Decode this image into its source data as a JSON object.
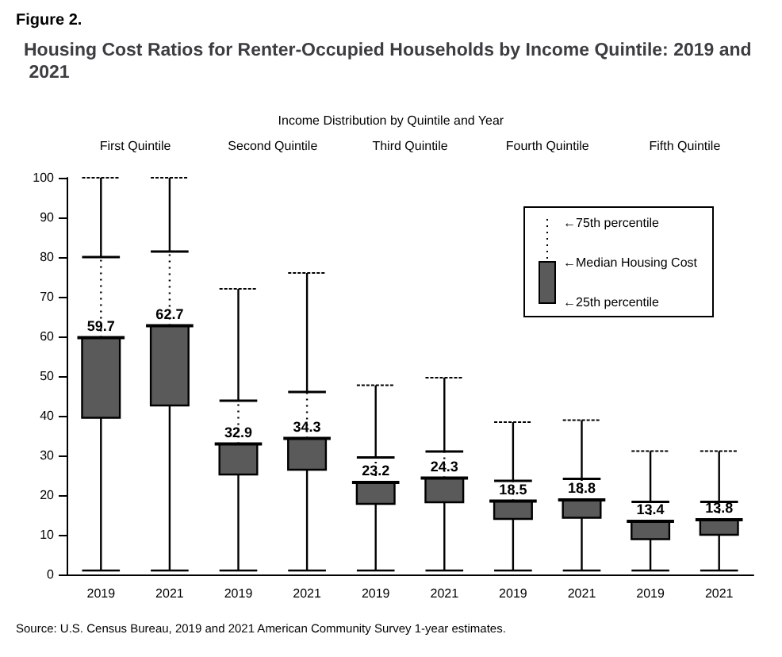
{
  "chart_data": {
    "type": "box",
    "title": "Housing Cost Ratios for Renter-Occupied Households by Income Quintile: 2019 and 2021",
    "xlabel": "Income Distribution by Quintile and Year",
    "categories": [
      "2019",
      "2021",
      "2019",
      "2021",
      "2019",
      "2021",
      "2019",
      "2021",
      "2019",
      "2021"
    ],
    "color": "#5a5a5a",
    "boxes": [
      {
        "low": 1,
        "q1": 39.5,
        "median": 59.7,
        "q3": 80,
        "high": 100
      },
      {
        "low": 1,
        "q1": 42.6,
        "median": 62.7,
        "q3": 81.4,
        "high": 100
      },
      {
        "low": 1,
        "q1": 25.2,
        "median": 32.9,
        "q3": 43.8,
        "high": 72
      },
      {
        "low": 1,
        "q1": 26.4,
        "median": 34.3,
        "q3": 46,
        "high": 76
      },
      {
        "low": 1,
        "q1": 17.8,
        "median": 23.2,
        "q3": 29.5,
        "high": 47.7
      },
      {
        "low": 1,
        "q1": 18.2,
        "median": 24.3,
        "q3": 31,
        "high": 49.6
      },
      {
        "low": 1,
        "q1": 14,
        "median": 18.5,
        "q3": 23.6,
        "high": 38.4
      },
      {
        "low": 1,
        "q1": 14.3,
        "median": 18.8,
        "q3": 24.1,
        "high": 38.9
      },
      {
        "low": 1,
        "q1": 8.9,
        "median": 13.4,
        "q3": 18.3,
        "high": 31.1
      },
      {
        "low": 1,
        "q1": 10,
        "median": 13.8,
        "q3": 18.3,
        "high": 31.1
      }
    ],
    "value_labels": [
      "59.7",
      "62.7",
      "32.9",
      "34.3",
      "23.2",
      "24.3",
      "18.5",
      "18.8",
      "13.4",
      "13.8"
    ],
    "ylim": [
      0,
      100
    ],
    "yticks": [
      0,
      10,
      20,
      30,
      40,
      50,
      60,
      70,
      80,
      90,
      100
    ],
    "annotations": [
      "Figure 2.",
      "First Quintile",
      "Second Quintile",
      "Third Quintile",
      "Fourth Quintile",
      "Fifth Quintile",
      "←75th percentile",
      "←Median Housing Cost",
      "←25th percentile",
      "Source: U.S. Census Bureau, 2019 and 2021 American Community Survey 1-year estimates."
    ]
  }
}
